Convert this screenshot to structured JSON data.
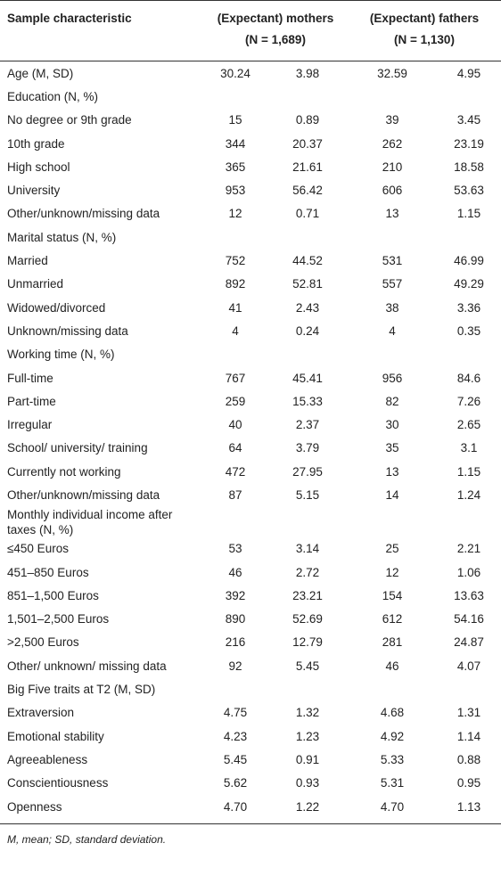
{
  "header": {
    "col0": "Sample characteristic",
    "group1": "(Expectant) mothers",
    "group1_n": "(N = 1,689)",
    "group2": "(Expectant) fathers",
    "group2_n": "(N = 1,130)"
  },
  "rows": [
    {
      "label": "Age (M, SD)",
      "values": [
        "30.24",
        "3.98",
        "32.59",
        "4.95"
      ]
    },
    {
      "label": "Education (N, %)"
    },
    {
      "label": "No degree or 9th grade",
      "values": [
        "15",
        "0.89",
        "39",
        "3.45"
      ]
    },
    {
      "label": "10th grade",
      "values": [
        "344",
        "20.37",
        "262",
        "23.19"
      ]
    },
    {
      "label": "High school",
      "values": [
        "365",
        "21.61",
        "210",
        "18.58"
      ]
    },
    {
      "label": "University",
      "values": [
        "953",
        "56.42",
        "606",
        "53.63"
      ]
    },
    {
      "label": "Other/unknown/missing data",
      "values": [
        "12",
        "0.71",
        "13",
        "1.15"
      ]
    },
    {
      "label": "Marital status (N, %)"
    },
    {
      "label": "Married",
      "values": [
        "752",
        "44.52",
        "531",
        "46.99"
      ]
    },
    {
      "label": "Unmarried",
      "values": [
        "892",
        "52.81",
        "557",
        "49.29"
      ]
    },
    {
      "label": "Widowed/divorced",
      "values": [
        "41",
        "2.43",
        "38",
        "3.36"
      ]
    },
    {
      "label": "Unknown/missing data",
      "values": [
        "4",
        "0.24",
        "4",
        "0.35"
      ]
    },
    {
      "label": "Working time (N, %)"
    },
    {
      "label": "Full-time",
      "values": [
        "767",
        "45.41",
        "956",
        "84.6"
      ]
    },
    {
      "label": "Part-time",
      "values": [
        "259",
        "15.33",
        "82",
        "7.26"
      ]
    },
    {
      "label": "Irregular",
      "values": [
        "40",
        "2.37",
        "30",
        "2.65"
      ]
    },
    {
      "label": "School/ university/ training",
      "values": [
        "64",
        "3.79",
        "35",
        "3.1"
      ]
    },
    {
      "label": "Currently not working",
      "values": [
        "472",
        "27.95",
        "13",
        "1.15"
      ]
    },
    {
      "label": "Other/unknown/missing data",
      "values": [
        "87",
        "5.15",
        "14",
        "1.24"
      ]
    },
    {
      "label": "Monthly individual income after taxes (N, %)"
    },
    {
      "label": "≤450 Euros",
      "values": [
        "53",
        "3.14",
        "25",
        "2.21"
      ]
    },
    {
      "label": "451–850 Euros",
      "values": [
        "46",
        "2.72",
        "12",
        "1.06"
      ]
    },
    {
      "label": "851–1,500 Euros",
      "values": [
        "392",
        "23.21",
        "154",
        "13.63"
      ]
    },
    {
      "label": "1,501–2,500 Euros",
      "values": [
        "890",
        "52.69",
        "612",
        "54.16"
      ]
    },
    {
      "label": ">2,500 Euros",
      "values": [
        "216",
        "12.79",
        "281",
        "24.87"
      ]
    },
    {
      "label": "Other/ unknown/ missing data",
      "values": [
        "92",
        "5.45",
        "46",
        "4.07"
      ]
    },
    {
      "label": "Big Five traits at T2 (M, SD)"
    },
    {
      "label": "Extraversion",
      "values": [
        "4.75",
        "1.32",
        "4.68",
        "1.31"
      ]
    },
    {
      "label": "Emotional stability",
      "values": [
        "4.23",
        "1.23",
        "4.92",
        "1.14"
      ]
    },
    {
      "label": "Agreeableness",
      "values": [
        "5.45",
        "0.91",
        "5.33",
        "0.88"
      ]
    },
    {
      "label": "Conscientiousness",
      "values": [
        "5.62",
        "0.93",
        "5.31",
        "0.95"
      ]
    },
    {
      "label": "Openness",
      "values": [
        "4.70",
        "1.22",
        "4.70",
        "1.13"
      ]
    }
  ],
  "note": "M, mean; SD, standard deviation."
}
